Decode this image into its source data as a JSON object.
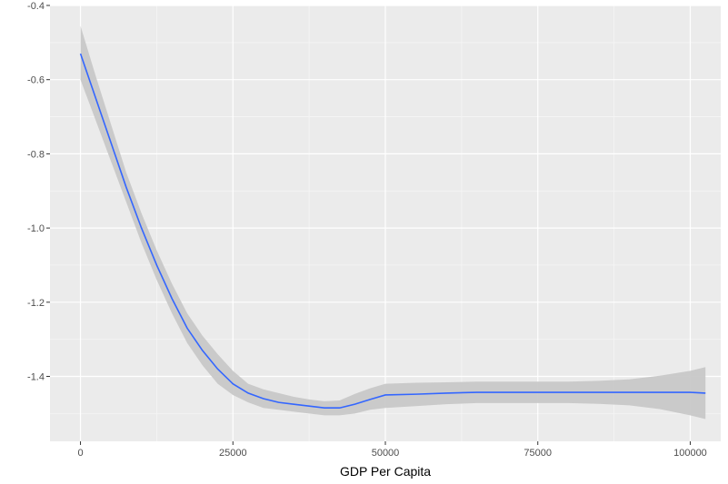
{
  "chart_data": {
    "type": "line",
    "title": "",
    "xlabel": "GDP Per Capita",
    "ylabel": "",
    "xlim": [
      -5000,
      105000
    ],
    "ylim": [
      -1.575,
      -0.4
    ],
    "x_ticks": [
      0,
      25000,
      50000,
      75000,
      100000
    ],
    "x_tick_labels": [
      "0",
      "25000",
      "50000",
      "75000",
      "100000"
    ],
    "y_ticks": [
      -0.4,
      -0.6,
      -0.8,
      -1.0,
      -1.2,
      -1.4
    ],
    "y_tick_labels": [
      "-0.4",
      "-0.6",
      "-0.8",
      "-1.0",
      "-1.2",
      "-1.4"
    ],
    "grid": true,
    "legend": "none",
    "colors": {
      "panel": "#ebebeb",
      "grid_major": "#ffffff",
      "grid_minor": "#f5f5f5",
      "line": "#3366ff",
      "ribbon": "#c8c8c8"
    },
    "series": [
      {
        "x": [
          0,
          2500,
          5000,
          7500,
          10000,
          12500,
          15000,
          17500,
          20000,
          22500,
          25000,
          27500,
          30000,
          32500,
          35000,
          37500,
          40000,
          42500,
          45000,
          47500,
          50000,
          55000,
          60000,
          65000,
          70000,
          75000,
          80000,
          85000,
          90000,
          95000,
          100000,
          102500
        ],
        "y": [
          -0.53,
          -0.65,
          -0.77,
          -0.89,
          -1.0,
          -1.1,
          -1.19,
          -1.27,
          -1.33,
          -1.38,
          -1.42,
          -1.445,
          -1.46,
          -1.47,
          -1.475,
          -1.48,
          -1.485,
          -1.485,
          -1.475,
          -1.462,
          -1.45,
          -1.448,
          -1.445,
          -1.443,
          -1.443,
          -1.443,
          -1.443,
          -1.443,
          -1.443,
          -1.443,
          -1.443,
          -1.445
        ],
        "ymin": [
          -0.6,
          -0.71,
          -0.82,
          -0.93,
          -1.04,
          -1.14,
          -1.23,
          -1.31,
          -1.37,
          -1.42,
          -1.45,
          -1.47,
          -1.485,
          -1.49,
          -1.495,
          -1.5,
          -1.505,
          -1.505,
          -1.5,
          -1.49,
          -1.485,
          -1.48,
          -1.475,
          -1.472,
          -1.472,
          -1.472,
          -1.472,
          -1.474,
          -1.478,
          -1.488,
          -1.505,
          -1.515
        ],
        "ymax": [
          -0.455,
          -0.59,
          -0.72,
          -0.85,
          -0.96,
          -1.06,
          -1.15,
          -1.23,
          -1.29,
          -1.34,
          -1.385,
          -1.42,
          -1.435,
          -1.445,
          -1.455,
          -1.462,
          -1.467,
          -1.465,
          -1.447,
          -1.432,
          -1.42,
          -1.417,
          -1.416,
          -1.414,
          -1.414,
          -1.414,
          -1.414,
          -1.412,
          -1.408,
          -1.398,
          -1.385,
          -1.375
        ]
      }
    ]
  }
}
